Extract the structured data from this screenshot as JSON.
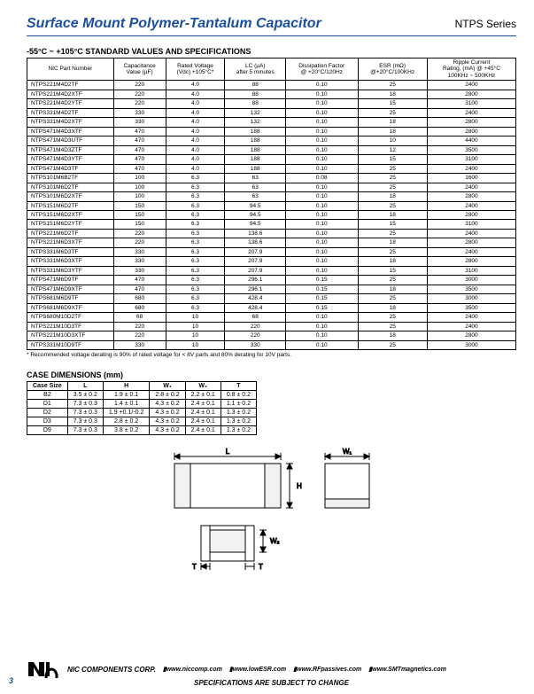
{
  "header": {
    "title": "Surface Mount Polymer-Tantalum Capacitor",
    "series": "NTPS Series"
  },
  "spec_section": {
    "heading": "-55°C ~ +105°C STANDARD VALUES AND SPECIFICATIONS",
    "columns": [
      "NIC Part Number",
      "Capacitance\nValue (µF)",
      "Rated Voltage\n(Vdc) +105°C*",
      "LC (µA)\nafter 5 minutes",
      "Dissipation Factor\n@ +20°C/120Hz",
      "ESR (mΩ)\n@+20°C/100KHz",
      "Ripple Current\nRating, (mA) @ +45°C\n100KHz ~ 500KHz"
    ],
    "rows": [
      [
        "NTPS221M4D2TF",
        "220",
        "4.0",
        "88",
        "0.10",
        "25",
        "2400"
      ],
      [
        "NTPS221M4D2XTF",
        "220",
        "4.0",
        "88",
        "0.10",
        "18",
        "2800"
      ],
      [
        "NTPS221M4D2YTF",
        "220",
        "4.0",
        "88",
        "0.10",
        "15",
        "3100"
      ],
      [
        "NTPS331M4D2TF",
        "330",
        "4.0",
        "132",
        "0.10",
        "25",
        "2400"
      ],
      [
        "NTPS331M4D2XTF",
        "330",
        "4.0",
        "132",
        "0.10",
        "18",
        "2800"
      ],
      [
        "NTPS471M4D3XTF",
        "470",
        "4.0",
        "188",
        "0.10",
        "18",
        "2800"
      ],
      [
        "NTPS471M4D3UTF",
        "470",
        "4.0",
        "188",
        "0.10",
        "10",
        "4400"
      ],
      [
        "NTPS471M4D3ZTF",
        "470",
        "4.0",
        "188",
        "0.10",
        "12",
        "3500"
      ],
      [
        "NTPS471M4D3YTF",
        "470",
        "4.0",
        "188",
        "0.10",
        "15",
        "3100"
      ],
      [
        "NTPS471M4D3TF",
        "470",
        "4.0",
        "188",
        "0.10",
        "25",
        "2400"
      ],
      [
        "NTPS101M6B2TF",
        "100",
        "6.3",
        "63",
        "0.08",
        "25",
        "1600"
      ],
      [
        "NTPS101M6D2TF",
        "100",
        "6.3",
        "63",
        "0.10",
        "25",
        "2400"
      ],
      [
        "NTPS101M6D2XTF",
        "100",
        "6.3",
        "63",
        "0.10",
        "18",
        "2800"
      ],
      [
        "NTPS151M6D2TF",
        "150",
        "6.3",
        "94.5",
        "0.10",
        "25",
        "2400"
      ],
      [
        "NTPS151M6D2XTF",
        "150",
        "6.3",
        "94.5",
        "0.10",
        "18",
        "2800"
      ],
      [
        "NTPS151M6D2YTF",
        "150",
        "6.3",
        "94.5",
        "0.10",
        "15",
        "3100"
      ],
      [
        "NTPS221M6D2TF",
        "220",
        "6.3",
        "138.6",
        "0.10",
        "25",
        "2400"
      ],
      [
        "NTPS221M6D3XTF",
        "220",
        "6.3",
        "138.6",
        "0.10",
        "18",
        "2800"
      ],
      [
        "NTPS331M6D3TF",
        "330",
        "6.3",
        "207.9",
        "0.10",
        "25",
        "2400"
      ],
      [
        "NTPS331M6D3XTF",
        "330",
        "6.3",
        "207.9",
        "0.10",
        "18",
        "2800"
      ],
      [
        "NTPS331M6D3YTF",
        "330",
        "6.3",
        "207.9",
        "0.10",
        "15",
        "3100"
      ],
      [
        "NTPS471M6D9TF",
        "470",
        "6.3",
        "296.1",
        "0.15",
        "25",
        "3000"
      ],
      [
        "NTPS471M6D9XTF",
        "470",
        "6.3",
        "296.1",
        "0.15",
        "18",
        "3500"
      ],
      [
        "NTPS681M6D9TF",
        "680",
        "6.3",
        "428.4",
        "0.15",
        "25",
        "3000"
      ],
      [
        "NTPS681M6D9XTF",
        "680",
        "6.3",
        "428.4",
        "0.15",
        "18",
        "3500"
      ],
      [
        "NTPS680M10D2TF",
        "68",
        "10",
        "68",
        "0.10",
        "25",
        "2400"
      ],
      [
        "NTPS221M10D3TF",
        "220",
        "10",
        "220",
        "0.10",
        "25",
        "2400"
      ],
      [
        "NTPS221M10D3XTF",
        "220",
        "10",
        "220",
        "0.10",
        "18",
        "2800"
      ],
      [
        "NTPS331M10D9TF",
        "330",
        "10",
        "330",
        "0.10",
        "25",
        "3000"
      ]
    ],
    "footnote": "* Recommended voltage derating is 90% of rated voltage for < 8V parts and 80% derating for 10V parts."
  },
  "case_section": {
    "heading": "CASE DIMENSIONS (mm)",
    "columns": [
      "Case Size",
      "L",
      "H",
      "W₁",
      "W₂",
      "T"
    ],
    "rows": [
      [
        "B2",
        "3.5 ± 0.2",
        "1.9 ± 0.1",
        "2.8 ± 0.2",
        "2.2 ± 0.1",
        "0.8 ± 0.2"
      ],
      [
        "D1",
        "7.3 ± 0.3",
        "1.4 ± 0.1",
        "4.3 ± 0.2",
        "2.4 ± 0.1",
        "1.1 ± 0.2"
      ],
      [
        "D2",
        "7.3 ± 0.3",
        "1.9 +0.1/-0.2",
        "4.3 ± 0.2",
        "2.4 ± 0.1",
        "1.3 ± 0.2"
      ],
      [
        "D3",
        "7.3 ± 0.3",
        "2.8 ± 0.2",
        "4.3 ± 0.2",
        "2.4 ± 0.1",
        "1.3 ± 0.2"
      ],
      [
        "D9",
        "7.3 ± 0.3",
        "3.8 ± 0.2",
        "4.3 ± 0.2",
        "2.4 ± 0.1",
        "1.3 ± 0.2"
      ]
    ]
  },
  "diagram": {
    "labels": {
      "L": "L",
      "H": "H",
      "W1": "W₁",
      "W2": "W₂",
      "T": "T"
    },
    "stroke": "#000000",
    "fill": "#f2f2f2"
  },
  "footer": {
    "corp": "NIC COMPONENTS CORP.",
    "links": [
      "www.niccomp.com",
      "www.lowESR.com",
      "www.RFpassives.com",
      "www.SMTmagnetics.com"
    ],
    "subject": "SPECIFICATIONS ARE SUBJECT TO CHANGE",
    "pagenum": "3"
  }
}
